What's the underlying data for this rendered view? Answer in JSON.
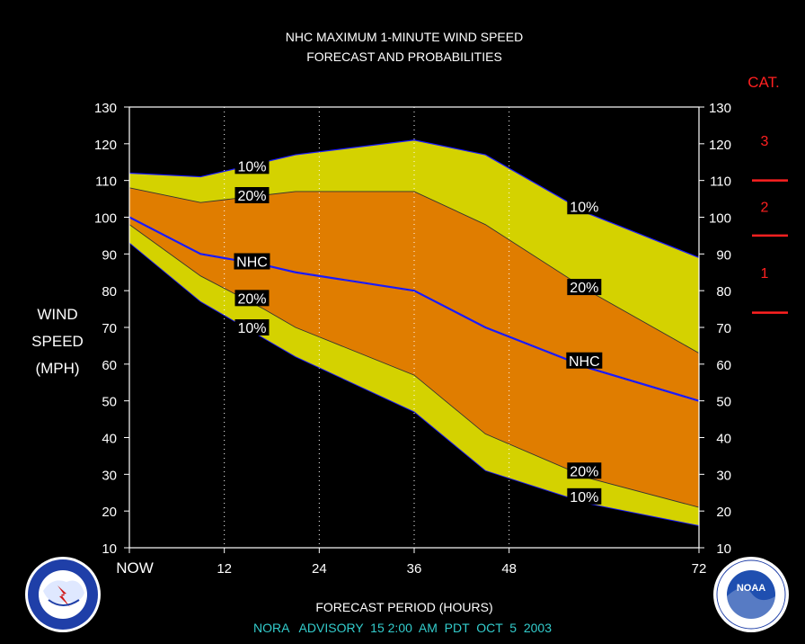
{
  "chart_data": {
    "type": "area",
    "title_line1": "NHC MAXIMUM 1-MINUTE WIND SPEED",
    "title_line2": "FORECAST AND PROBABILITIES",
    "ylabel_lines": [
      "WIND",
      "SPEED",
      "(MPH)"
    ],
    "xlabel": "FORECAST PERIOD (HOURS)",
    "advisory": "NORA   ADVISORY  15 2:00  AM  PDT  OCT  5  2003",
    "ylim": [
      10,
      130
    ],
    "xlim": [
      0,
      72
    ],
    "y_ticks": [
      10,
      20,
      30,
      40,
      50,
      60,
      70,
      80,
      90,
      100,
      110,
      120,
      130
    ],
    "x_ticks": [
      {
        "x": 0,
        "label": "NOW"
      },
      {
        "x": 12,
        "label": "12"
      },
      {
        "x": 24,
        "label": "24"
      },
      {
        "x": 36,
        "label": "36"
      },
      {
        "x": 48,
        "label": "48"
      },
      {
        "x": 72,
        "label": "72"
      }
    ],
    "x_gridlines": [
      12,
      24,
      36,
      48
    ],
    "x": [
      0,
      9,
      17,
      21,
      36,
      45,
      58,
      72
    ],
    "series": [
      {
        "name": "10%",
        "role": "upper",
        "values": [
          112,
          111,
          115,
          117,
          121,
          117,
          101,
          89
        ]
      },
      {
        "name": "20%",
        "role": "upper",
        "values": [
          108,
          104,
          106,
          107,
          107,
          98,
          80,
          63
        ]
      },
      {
        "name": "NHC",
        "role": "forecast",
        "values": [
          100,
          90,
          87,
          85,
          80,
          70,
          59,
          50
        ]
      },
      {
        "name": "20%",
        "role": "lower",
        "values": [
          98,
          84,
          75,
          70,
          57,
          41,
          29,
          21
        ]
      },
      {
        "name": "10%",
        "role": "lower",
        "values": [
          93,
          77,
          67,
          62,
          47,
          31,
          22,
          16
        ]
      }
    ],
    "curve_labels": [
      {
        "text": "10%",
        "x": 15.5,
        "y": 114
      },
      {
        "text": "20%",
        "x": 15.5,
        "y": 106
      },
      {
        "text": "NHC",
        "x": 15.5,
        "y": 88
      },
      {
        "text": "20%",
        "x": 15.5,
        "y": 78
      },
      {
        "text": "10%",
        "x": 15.5,
        "y": 70
      },
      {
        "text": "10%",
        "x": 57.5,
        "y": 103
      },
      {
        "text": "20%",
        "x": 57.5,
        "y": 81
      },
      {
        "text": "NHC",
        "x": 57.5,
        "y": 61
      },
      {
        "text": "20%",
        "x": 57.5,
        "y": 31
      },
      {
        "text": "10%",
        "x": 57.5,
        "y": 24
      }
    ],
    "category_scale": {
      "title": "CAT.",
      "categories": [
        {
          "label": "3",
          "y": 121
        },
        {
          "label": "2",
          "y": 103
        },
        {
          "label": "1",
          "y": 85
        }
      ],
      "boundaries": [
        110,
        95,
        74
      ]
    },
    "colors": {
      "background": "#000000",
      "outer_band": "#d4d200",
      "inner_band": "#e07d00",
      "forecast_line": "#1a1aff",
      "category": "#ff2020",
      "text": "#ffffff",
      "advisory_text": "#33cccc"
    }
  },
  "logos": {
    "left": "NATIONAL WEATHER SERVICE",
    "right": "NOAA"
  }
}
